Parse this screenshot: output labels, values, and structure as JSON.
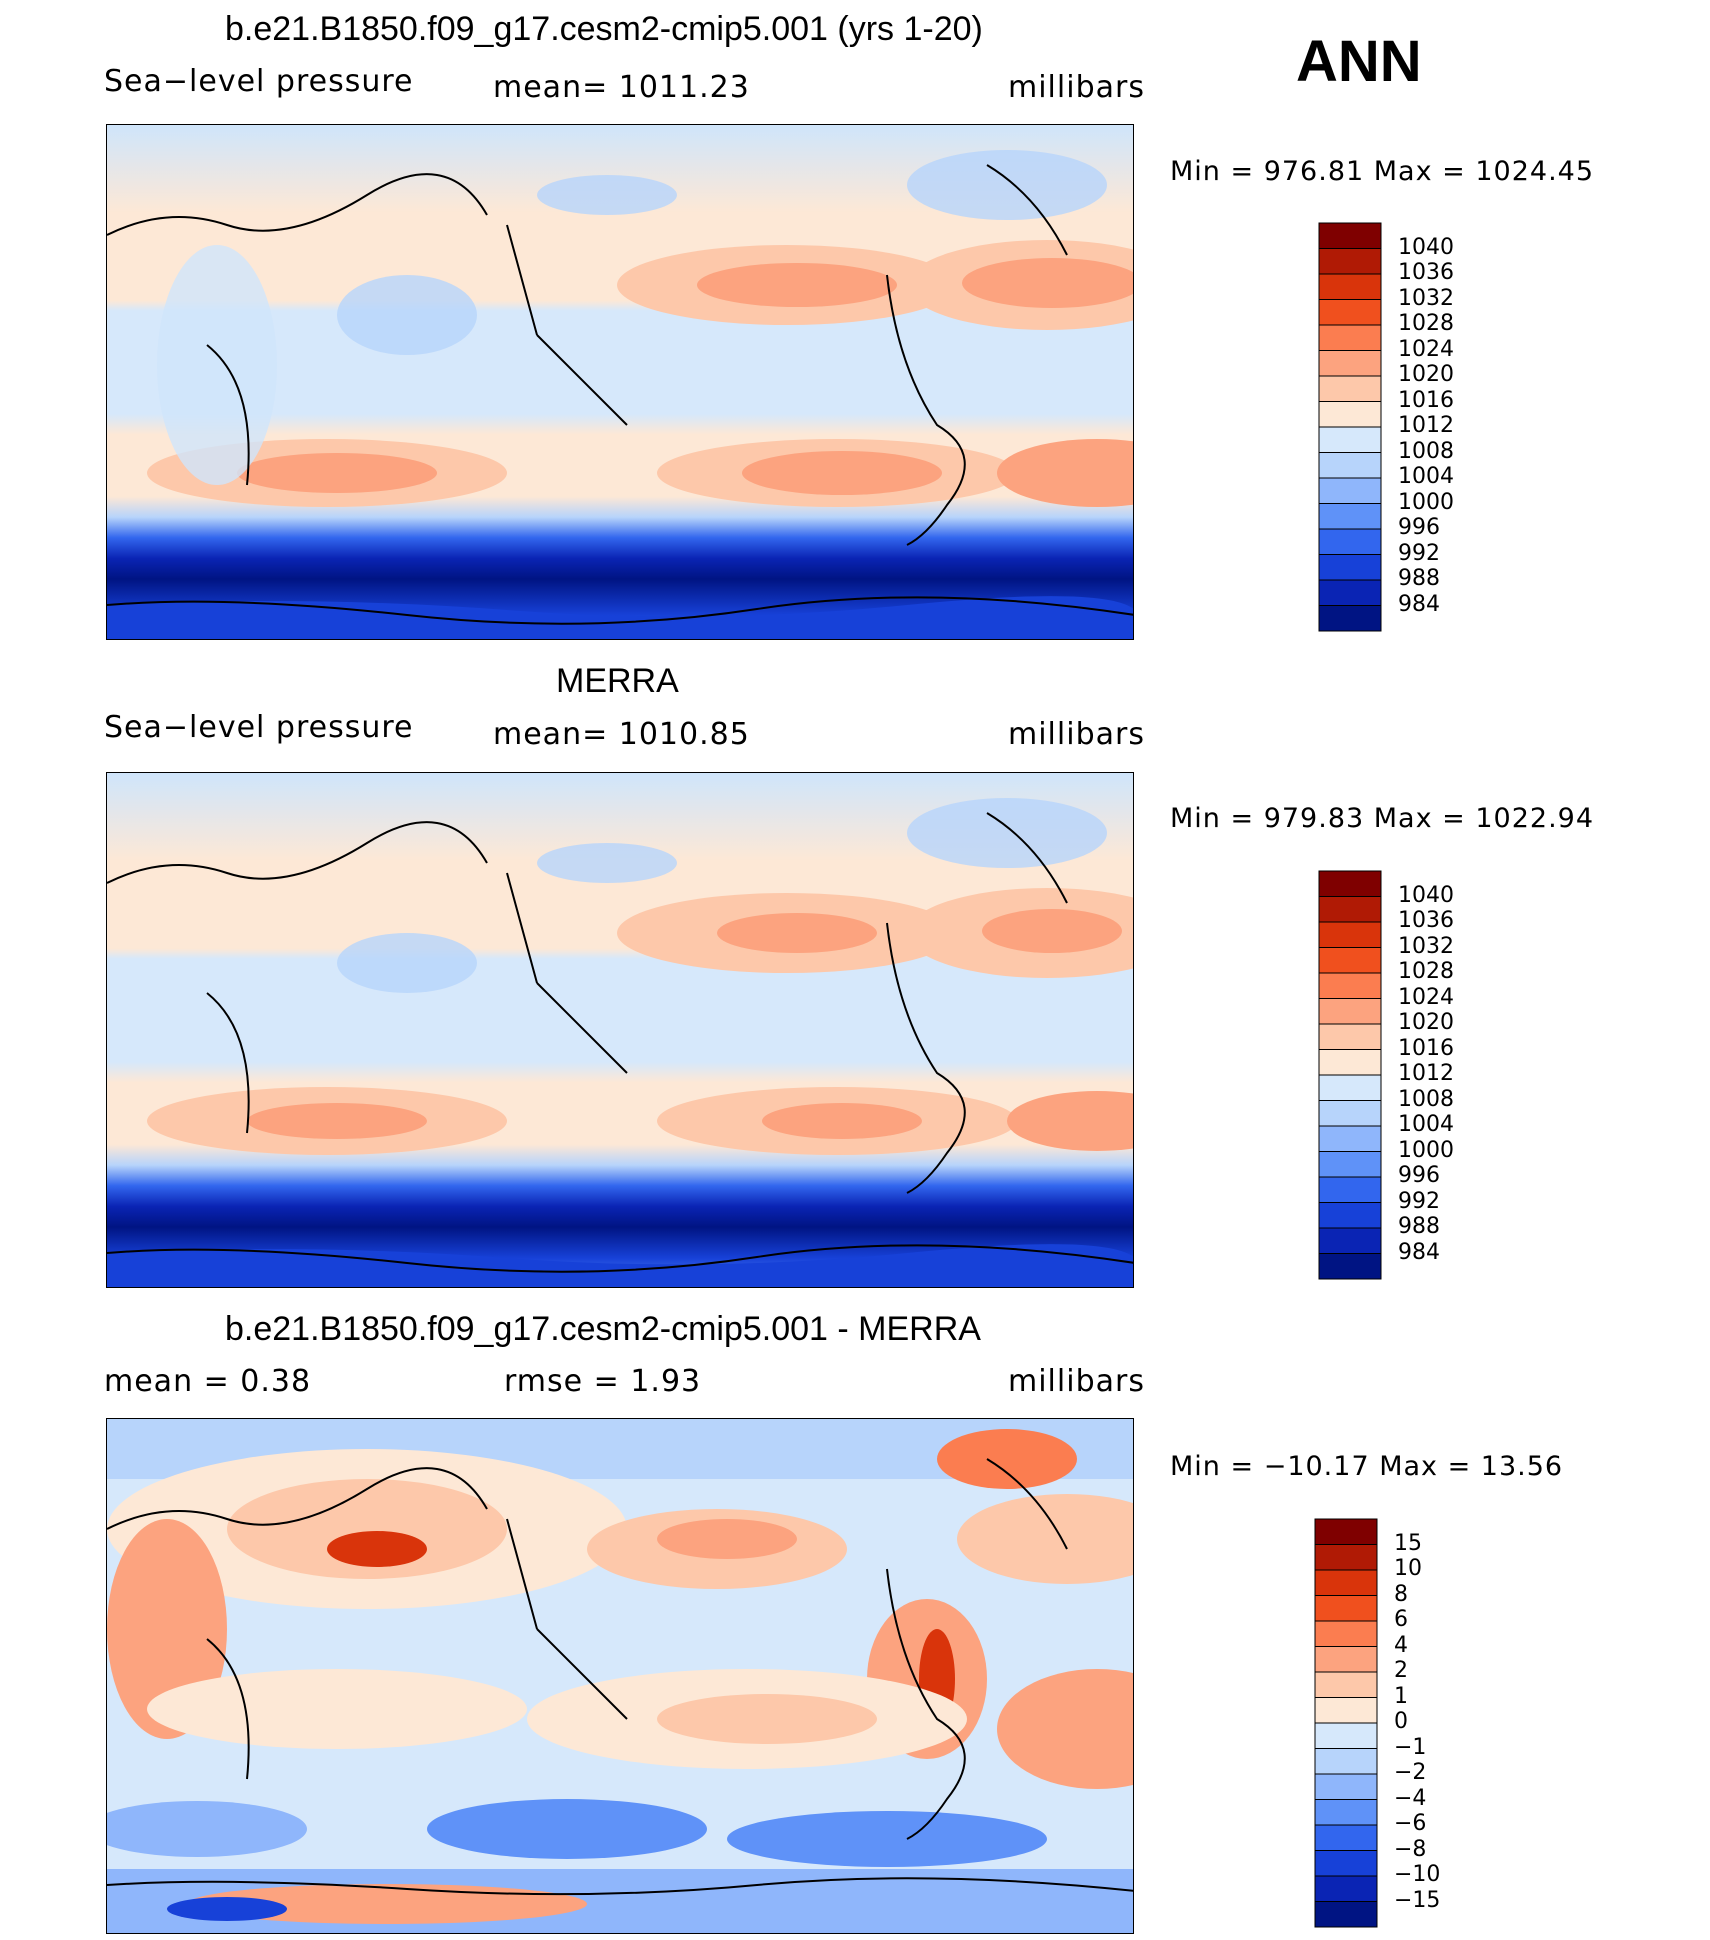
{
  "chart_data": [
    {
      "type": "heatmap",
      "title": "b.e21.B1850.f09_g17.cesm2-cmip5.001 (yrs 1-20)",
      "left_label": "Sea−level pressure",
      "center_label": "mean=  1011.23",
      "units": "millibars",
      "min_max": "Min  =  976.81  Max  =  1024.45",
      "min": 976.81,
      "max": 1024.45,
      "mean": 1011.23,
      "colorbar_labels": [
        "1040",
        "1036",
        "1032",
        "1028",
        "1024",
        "1020",
        "1016",
        "1012",
        "1008",
        "1004",
        "1000",
        "996",
        "992",
        "988",
        "984"
      ]
    },
    {
      "type": "heatmap",
      "title": "MERRA",
      "left_label": "Sea−level pressure",
      "center_label": "mean=  1010.85",
      "units": "millibars",
      "min_max": "Min  =  979.83  Max  =  1022.94",
      "min": 979.83,
      "max": 1022.94,
      "mean": 1010.85,
      "colorbar_labels": [
        "1040",
        "1036",
        "1032",
        "1028",
        "1024",
        "1020",
        "1016",
        "1012",
        "1008",
        "1004",
        "1000",
        "996",
        "992",
        "988",
        "984"
      ]
    },
    {
      "type": "heatmap",
      "title": "b.e21.B1850.f09_g17.cesm2-cmip5.001 - MERRA",
      "left_label": "mean  =     0.38",
      "center_label": "rmse  =     1.93",
      "units": "millibars",
      "min_max": "Min  =  −10.17  Max  =    13.56",
      "min": -10.17,
      "max": 13.56,
      "mean": 0.38,
      "rmse": 1.93,
      "colorbar_labels": [
        "15",
        "10",
        "8",
        "6",
        "4",
        "2",
        "1",
        "0",
        "−1",
        "−2",
        "−4",
        "−6",
        "−8",
        "−10",
        "−15"
      ]
    }
  ],
  "season": "ANN",
  "colors": {
    "abs_scale": [
      "#7f0000",
      "#b01a05",
      "#d9340b",
      "#f0501e",
      "#fb7d50",
      "#fca37f",
      "#fdc8aa",
      "#fde8d6",
      "#d6e8fb",
      "#b7d4fb",
      "#8fb6fb",
      "#5f92f8",
      "#3266ee",
      "#1741d8",
      "#0a24b4",
      "#001483"
    ],
    "diff_scale": [
      "#7f0000",
      "#b01a05",
      "#d9340b",
      "#f0501e",
      "#fb7d50",
      "#fca37f",
      "#fdc8aa",
      "#fde8d6",
      "#d6e8fb",
      "#b7d4fb",
      "#8fb6fb",
      "#5f92f8",
      "#3266ee",
      "#1741d8",
      "#0a24b4",
      "#001483"
    ]
  }
}
